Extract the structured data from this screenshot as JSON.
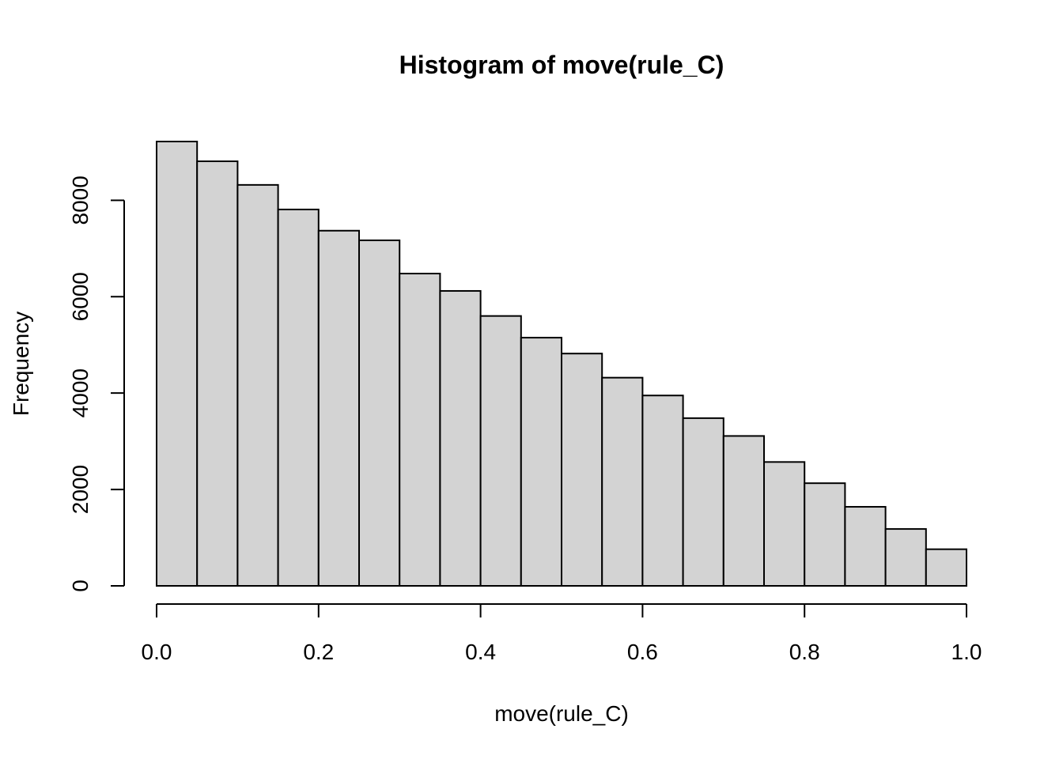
{
  "chart_data": {
    "type": "bar",
    "title": "Histogram of move(rule_C)",
    "xlabel": "move(rule_C)",
    "ylabel": "Frequency",
    "bin_edges": [
      0.0,
      0.05,
      0.1,
      0.15,
      0.2,
      0.25,
      0.3,
      0.35,
      0.4,
      0.45,
      0.5,
      0.55,
      0.6,
      0.65,
      0.7,
      0.75,
      0.8,
      0.85,
      0.9,
      0.95,
      1.0
    ],
    "values": [
      9220,
      8810,
      8320,
      7810,
      7370,
      7170,
      6480,
      6120,
      5600,
      5150,
      4820,
      4320,
      3950,
      3480,
      3110,
      2570,
      2130,
      1640,
      1180,
      760
    ],
    "xlim": [
      0.0,
      1.0
    ],
    "ylim": [
      0,
      9220
    ],
    "x_ticks": [
      0.0,
      0.2,
      0.4,
      0.6,
      0.8,
      1.0
    ],
    "x_tick_labels": [
      "0.0",
      "0.2",
      "0.4",
      "0.6",
      "0.8",
      "1.0"
    ],
    "y_ticks": [
      0,
      2000,
      4000,
      6000,
      8000
    ],
    "y_tick_labels": [
      "0",
      "2000",
      "4000",
      "6000",
      "8000"
    ],
    "bar_color": "#d3d3d3",
    "grid": false,
    "legend": "none"
  }
}
